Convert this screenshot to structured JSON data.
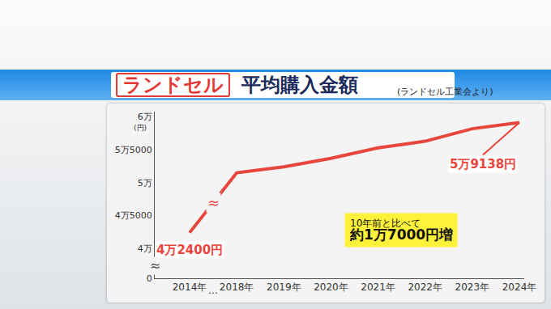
{
  "chart_data": {
    "type": "line",
    "title": "ランドセル 平均購入金額",
    "subtitle": "(ランドセル工業会より)",
    "ylabel": "(円)",
    "categories": [
      "2014年",
      "2018年",
      "2019年",
      "2020年",
      "2021年",
      "2022年",
      "2023年",
      "2024年"
    ],
    "values": [
      42400,
      51500,
      52400,
      53700,
      55300,
      56300,
      58200,
      59138
    ],
    "value_labels": [
      "4万2400円",
      null,
      null,
      null,
      null,
      null,
      null,
      "5万9138円"
    ],
    "data_labels": true,
    "color": "#e8453c",
    "ylim": [
      38000,
      60800
    ],
    "yticks": [
      {
        "value": 40000,
        "label": "4万"
      },
      {
        "value": 45000,
        "label": "4万5000"
      },
      {
        "value": 50000,
        "label": "5万"
      },
      {
        "value": 55000,
        "label": "5万5000"
      },
      {
        "value": 60000,
        "label": "6万"
      }
    ],
    "y2lim": [
      0,
      1000
    ],
    "y2ticks": [
      0
    ],
    "grid": false,
    "annotations": [
      {
        "text": "…"
      },
      {
        "text": "≈"
      },
      {
        "text": "≈"
      },
      {
        "text": "10年前と比べて\n約1万7000円増"
      }
    ]
  }
}
